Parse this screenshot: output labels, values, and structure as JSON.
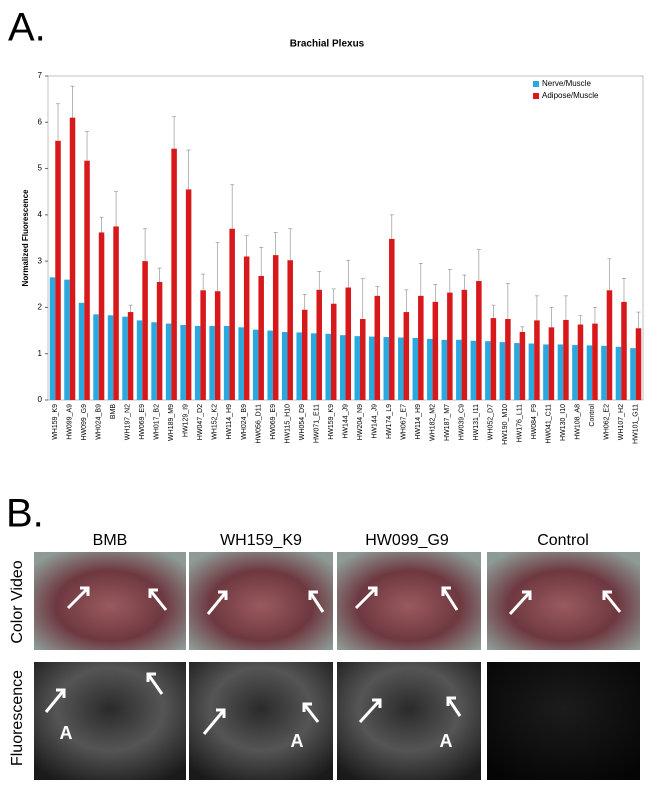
{
  "panel_a": {
    "label": "A."
  },
  "chart_data": {
    "type": "bar",
    "title": "Brachial Plexus",
    "y_label": "Normalized Fluorescence",
    "categories": [
      "WH159_K9",
      "HW099_A9",
      "HW099_G9",
      "WH024_B9",
      "BMB",
      "WH197_N2",
      "HW069_E9",
      "WH017_B2",
      "WH189_M9",
      "HW129_I9",
      "HW047_D2",
      "WH152_K2",
      "HW114_H9",
      "WH024_B9",
      "HW056_D11",
      "HW069_E9",
      "HW115_H10",
      "WH054_D9",
      "HW071_E11",
      "HW159_K9",
      "HW144_J9",
      "HW204_N9",
      "HW144_J9",
      "HW174_L9",
      "WH067_E7",
      "HW114_H9",
      "WH182_M2",
      "HW187_M7",
      "HW039_C9",
      "HW131_I11",
      "WH052_D7",
      "HW190_M10",
      "HW176_L11",
      "HW084_F9",
      "HW041_C11",
      "HW130_I10",
      "HW108_A8",
      "Control",
      "WH062_E2",
      "WH107_H2",
      "HW101_G11"
    ],
    "series": [
      {
        "name": "Nerve/Muscle",
        "color": "#29a9e0",
        "values": [
          2.65,
          2.6,
          2.1,
          1.85,
          1.83,
          1.8,
          1.72,
          1.68,
          1.65,
          1.62,
          1.6,
          1.6,
          1.6,
          1.57,
          1.52,
          1.5,
          1.47,
          1.46,
          1.44,
          1.43,
          1.4,
          1.38,
          1.37,
          1.36,
          1.35,
          1.34,
          1.32,
          1.3,
          1.3,
          1.28,
          1.27,
          1.25,
          1.23,
          1.22,
          1.2,
          1.2,
          1.19,
          1.18,
          1.17,
          1.15,
          1.12
        ]
      },
      {
        "name": "Adipose/Muscle",
        "color": "#d7191c",
        "values": [
          5.6,
          6.1,
          5.17,
          3.62,
          3.75,
          1.9,
          3.0,
          2.55,
          5.43,
          4.55,
          2.37,
          2.35,
          3.7,
          3.1,
          2.68,
          3.13,
          3.02,
          1.95,
          2.38,
          2.08,
          2.43,
          1.75,
          2.25,
          3.48,
          1.9,
          2.25,
          2.12,
          2.32,
          2.38,
          2.57,
          1.77,
          1.75,
          1.47,
          1.72,
          1.57,
          1.73,
          1.63,
          1.65,
          2.37,
          2.12,
          1.55
        ],
        "errors": [
          0.8,
          0.68,
          0.63,
          0.33,
          0.75,
          0.15,
          0.7,
          0.3,
          0.69,
          0.85,
          0.35,
          1.05,
          0.95,
          0.45,
          0.62,
          0.49,
          0.68,
          0.33,
          0.4,
          0.32,
          0.59,
          0.87,
          0.2,
          0.52,
          0.48,
          0.7,
          0.38,
          0.5,
          0.32,
          0.68,
          0.28,
          0.77,
          0.11,
          0.53,
          0.43,
          0.52,
          0.19,
          0.35,
          0.68,
          0.51,
          0.35
        ]
      }
    ],
    "ylim": [
      0,
      7
    ],
    "yticks": [
      0,
      1,
      2,
      3,
      4,
      5,
      6,
      7
    ],
    "legend": "top-right"
  },
  "panel_b": {
    "label": "B.",
    "columns": [
      "BMB",
      "WH159_K9",
      "HW099_G9",
      "Control"
    ],
    "rows": [
      "Color Video",
      "Fluorescence"
    ],
    "marker": "A"
  }
}
